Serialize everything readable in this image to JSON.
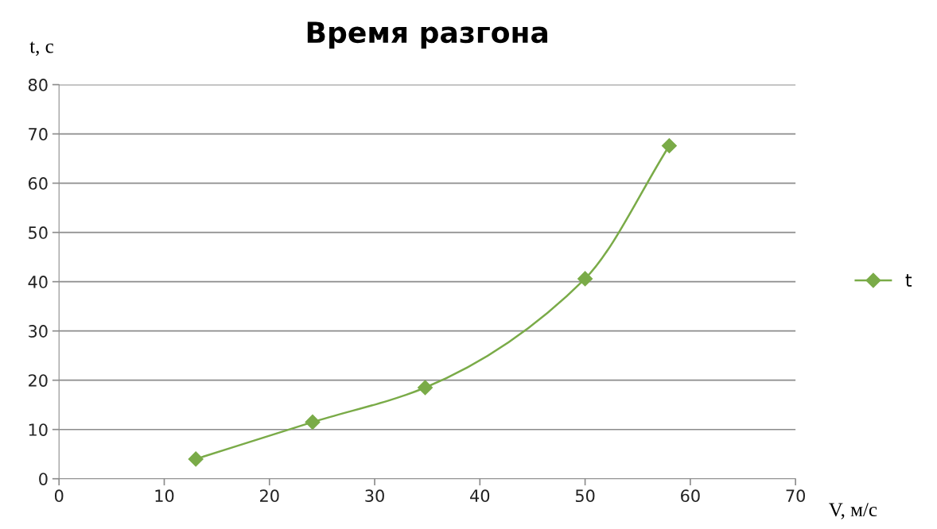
{
  "chart_data": {
    "type": "line",
    "title": "Время разгона",
    "xlabel": "V, м/с",
    "ylabel": "t, с",
    "series": [
      {
        "name": "t",
        "color": "#7aab48",
        "x": [
          13.0,
          24.1,
          34.8,
          50.0,
          58.0
        ],
        "values": [
          4.0,
          11.5,
          18.5,
          40.6,
          67.6
        ]
      }
    ],
    "xlim": [
      0,
      70
    ],
    "xticks": [
      0,
      10,
      20,
      30,
      40,
      50,
      60,
      70
    ],
    "ylim": [
      0,
      80
    ],
    "yticks": [
      0,
      10,
      20,
      30,
      40,
      50,
      60,
      70,
      80
    ],
    "grid": "y",
    "legend": "right",
    "marker": "diamond",
    "line_style": "solid"
  }
}
